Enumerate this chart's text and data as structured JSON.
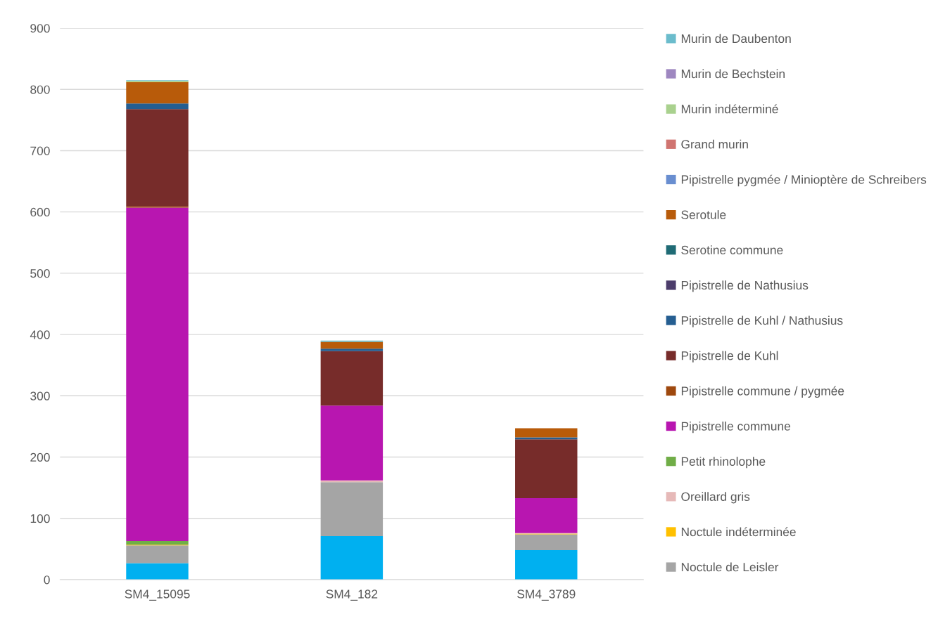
{
  "chart_data": {
    "type": "bar",
    "stacked": true,
    "categories": [
      "SM4_15095",
      "SM4_182",
      "SM4_3789"
    ],
    "ylim": [
      0,
      900
    ],
    "yticks": [
      0,
      100,
      200,
      300,
      400,
      500,
      600,
      700,
      800,
      900
    ],
    "grid": "y",
    "legend": "right",
    "series": [
      {
        "color": "#00b0f0",
        "values": [
          27,
          71,
          48
        ]
      },
      {
        "name": "Noctule de Leisler",
        "color": "#a5a5a5",
        "values": [
          29,
          88,
          26
        ]
      },
      {
        "name": "Noctule indéterminée",
        "color": "#ffc000",
        "values": [
          1,
          0,
          1
        ]
      },
      {
        "name": "Oreillard gris",
        "color": "#e6b9b8",
        "values": [
          0,
          3,
          1
        ]
      },
      {
        "name": "Petit rhinolophe",
        "color": "#70ad47",
        "values": [
          6,
          0,
          0
        ]
      },
      {
        "name": "Pipistrelle commune",
        "color": "#b816b0",
        "values": [
          544,
          122,
          57
        ]
      },
      {
        "name": "Pipistrelle commune / pygmée",
        "color": "#9e480e",
        "values": [
          2,
          0,
          0
        ]
      },
      {
        "name": "Pipistrelle de Kuhl",
        "color": "#772c2a",
        "values": [
          159,
          89,
          96
        ]
      },
      {
        "name": "Pipistrelle de Kuhl / Nathusius",
        "color": "#255e91",
        "values": [
          9,
          4,
          3
        ]
      },
      {
        "name": "Pipistrelle de Nathusius",
        "color": "#4c3d6b",
        "values": [
          0,
          0,
          0
        ]
      },
      {
        "name": "Serotine commune",
        "color": "#1f6b75",
        "values": [
          0,
          0,
          0
        ]
      },
      {
        "name": "Serotule",
        "color": "#b85b0a",
        "values": [
          35,
          11,
          15
        ]
      },
      {
        "name": "Pipistrelle pygmée / Minioptère de Schreibers",
        "color": "#698ed0",
        "values": [
          0,
          0,
          0
        ]
      },
      {
        "name": "Grand murin",
        "color": "#d07470",
        "values": [
          0,
          0,
          0
        ]
      },
      {
        "name": "Murin indéterminé",
        "color": "#a9d18e",
        "values": [
          2,
          0,
          0
        ]
      },
      {
        "name": "Murin de Bechstein",
        "color": "#9e87c0",
        "values": [
          0,
          0,
          0
        ]
      },
      {
        "name": "Murin de Daubenton",
        "color": "#6bbccc",
        "values": [
          1,
          2,
          0
        ]
      }
    ]
  }
}
